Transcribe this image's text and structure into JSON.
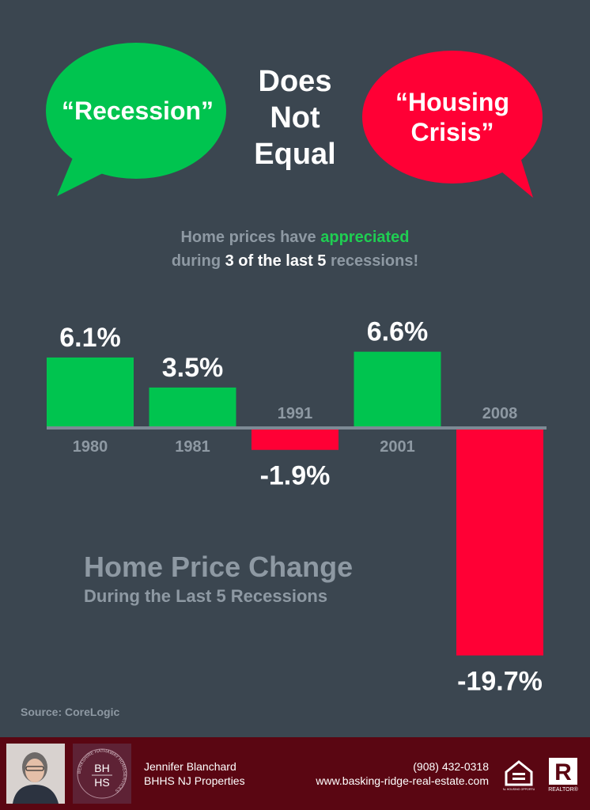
{
  "header": {
    "left_bubble": {
      "text": "“Recession”",
      "color": "#00c44f"
    },
    "center_title": [
      "Does",
      "Not",
      "Equal"
    ],
    "right_bubble": {
      "line1": "“Housing",
      "line2": "Crisis”",
      "color": "#ff0035"
    }
  },
  "subtitle": {
    "line1_a": "Home prices have ",
    "line1_b": "appreciated",
    "line2_a": "during ",
    "line2_b": "3 of the last 5",
    "line2_c": " recessions!"
  },
  "chart_data": {
    "type": "bar",
    "categories": [
      "1980",
      "1981",
      "1991",
      "2001",
      "2008"
    ],
    "values": [
      6.1,
      3.5,
      -1.9,
      6.6,
      -19.7
    ],
    "value_labels": [
      "6.1%",
      "3.5%",
      "-1.9%",
      "6.6%",
      "-19.7%"
    ],
    "title": "Home Price Change",
    "subtitle": "During the Last 5 Recessions",
    "positive_color": "#00c44f",
    "negative_color": "#ff0035",
    "category_label_color": "#8e99a3",
    "grid": false
  },
  "source": "Source: CoreLogic",
  "footer": {
    "agent_name": "Jennifer Blanchard",
    "company": "BHHS NJ Properties",
    "phone": "(908) 432-0318",
    "website": "www.basking-ridge-real-estate.com",
    "logo_letters_top": "BH",
    "logo_letters_bottom": "HS",
    "logo_ring_text": "BERKSHIRE HATHAWAY HOMESERVICES",
    "eho_label": "EQUAL HOUSING OPPORTUNITY",
    "realtor_label": "REALTOR®",
    "realtor_mark": "R"
  }
}
